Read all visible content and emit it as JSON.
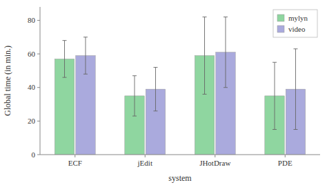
{
  "chart_data": {
    "type": "bar",
    "categories": [
      "ECF",
      "jEdit",
      "JHotDraw",
      "PDE"
    ],
    "series": [
      {
        "name": "mylyn",
        "color": "#8FD6A0",
        "values": [
          57,
          35,
          59,
          35
        ],
        "errors": [
          11,
          12,
          23,
          20
        ]
      },
      {
        "name": "video",
        "color": "#AAAADD",
        "values": [
          59,
          39,
          61,
          39
        ],
        "errors": [
          11,
          13,
          21,
          24
        ]
      }
    ],
    "xlabel": "system",
    "ylabel": "Global time (in min.)",
    "ylim": [
      0,
      88
    ],
    "yticks": [
      0,
      20,
      40,
      60,
      80
    ],
    "grid": false,
    "legend": "upper right"
  }
}
